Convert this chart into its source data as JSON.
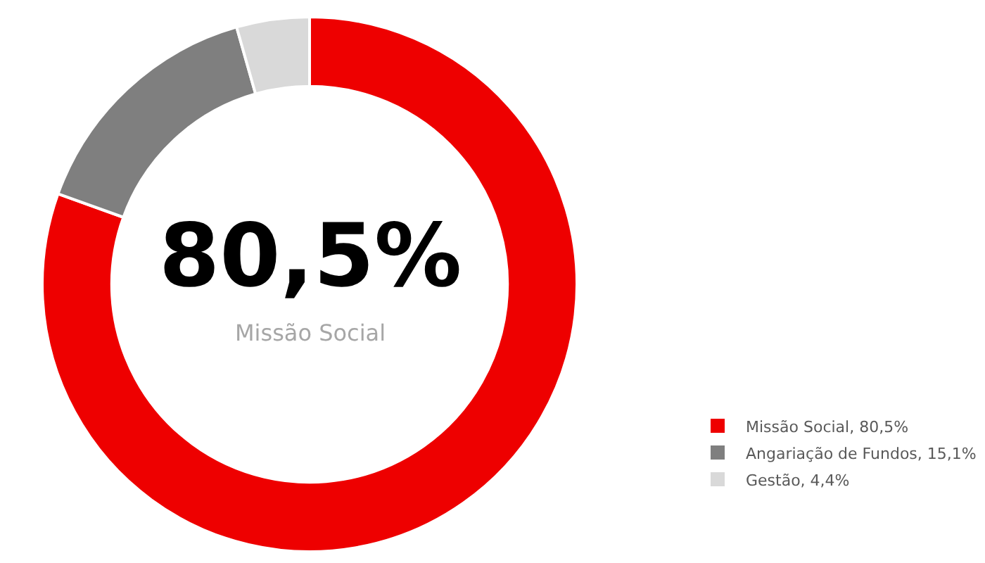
{
  "chart_data": {
    "type": "donut",
    "categories": [
      "Missão Social, 80,5%",
      "Angariação de Fundos, 15,1%",
      "Gestão, 4,4%"
    ],
    "values": [
      80.5,
      15.1,
      4.4
    ],
    "colors": [
      "#ee0000",
      "#7f7f7f",
      "#d9d9d9"
    ],
    "annotations": [
      "80,5%",
      "Missão Social"
    ],
    "legend": "bottom right"
  }
}
